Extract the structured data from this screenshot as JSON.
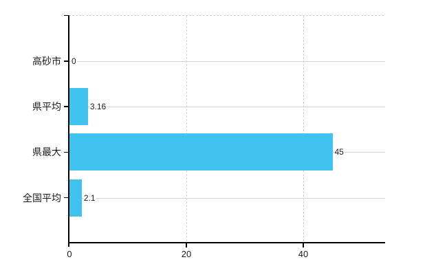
{
  "chart_data": {
    "type": "bar",
    "orientation": "horizontal",
    "title": "",
    "categories": [
      "高砂市",
      "県平均",
      "県最大",
      "全国平均"
    ],
    "values": [
      0,
      3.16,
      45,
      2.1
    ],
    "value_labels": [
      "0",
      "3.16",
      "45",
      "2.1"
    ],
    "x_ticks": [
      0,
      20,
      40
    ],
    "x_tick_labels": [
      "0",
      "20",
      "40"
    ],
    "xlim": [
      0,
      54
    ],
    "grid": true,
    "legend": false,
    "colors": {
      "bar": "#41c3f0",
      "gridline": "#d2d7d2",
      "axis": "#000000",
      "text": "#1c1c1c",
      "background": "#ffffff"
    }
  }
}
